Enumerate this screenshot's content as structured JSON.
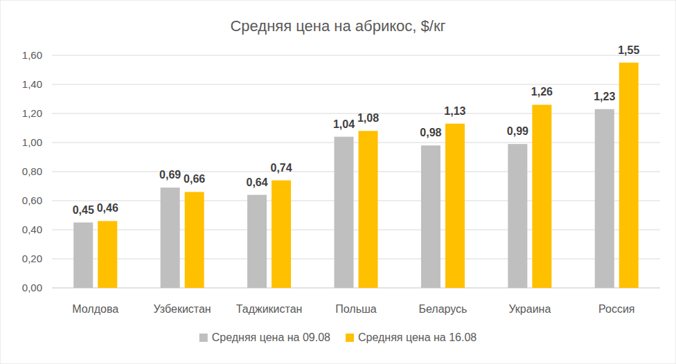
{
  "chart_data": {
    "type": "bar",
    "title": "Средняя цена на абрикос, $/кг",
    "categories": [
      "Молдова",
      "Узбекистан",
      "Таджикистан",
      "Польша",
      "Беларусь",
      "Украина",
      "Россия"
    ],
    "series": [
      {
        "name": "Средняя цена на 09.08",
        "color": "#bfbfbf",
        "values": [
          0.45,
          0.69,
          0.64,
          1.04,
          0.98,
          0.99,
          1.23
        ],
        "value_labels": [
          "0,45",
          "0,69",
          "0,64",
          "1,04",
          "0,98",
          "0,99",
          "1,23"
        ]
      },
      {
        "name": "Средняя цена на 16.08",
        "color": "#ffc000",
        "values": [
          0.46,
          0.66,
          0.74,
          1.08,
          1.13,
          1.26,
          1.55
        ],
        "value_labels": [
          "0,46",
          "0,66",
          "0,74",
          "1,08",
          "1,13",
          "1,26",
          "1,55"
        ]
      }
    ],
    "ylim": [
      0,
      1.6
    ],
    "yticks": [
      {
        "value": 0,
        "label": "0,00"
      },
      {
        "value": 0.2,
        "label": "0,20"
      },
      {
        "value": 0.4,
        "label": "0,40"
      },
      {
        "value": 0.6,
        "label": "0,60"
      },
      {
        "value": 0.8,
        "label": "0,80"
      },
      {
        "value": 1,
        "label": "1,00"
      },
      {
        "value": 1.2,
        "label": "1,20"
      },
      {
        "value": 1.4,
        "label": "1,40"
      },
      {
        "value": 1.6,
        "label": "1,60"
      }
    ],
    "grid": true,
    "data_labels": true,
    "legend": "bottom"
  }
}
